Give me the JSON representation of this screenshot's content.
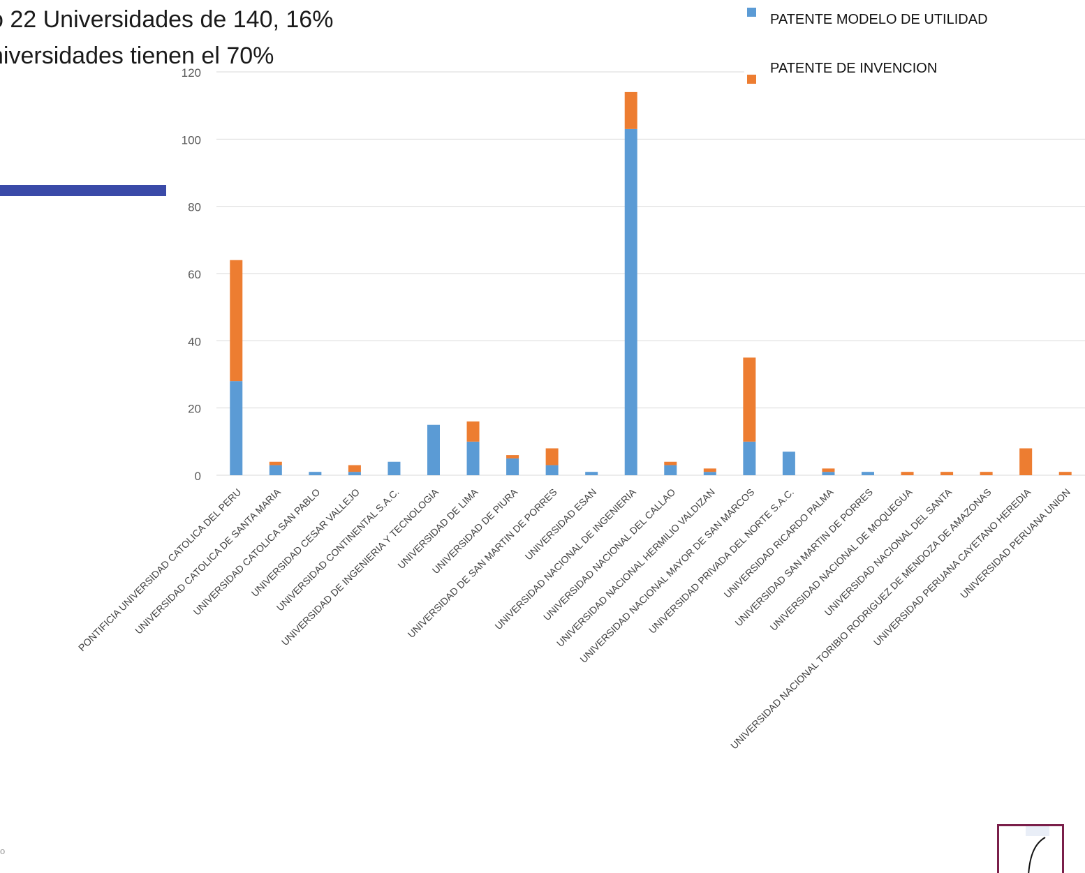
{
  "slide": {
    "title_line_1": "o 22 Universidades de 140, 16%",
    "title_line_2": "niversidades tienen el 70%",
    "corner_text": "o"
  },
  "colors": {
    "modelo_utilidad": "#5b9bd5",
    "invencion": "#ed7d31",
    "accent_bar": "#3a4aa8",
    "logo_border": "#7a1f4a"
  },
  "chart_data": {
    "type": "bar",
    "stacked": true,
    "categories": [
      "PONTIFICIA UNIVERSIDAD CATOLICA DEL PERU",
      "UNIVERSIDAD CATOLICA DE SANTA MARIA",
      "UNIVERSIDAD CATOLICA SAN PABLO",
      "UNIVERSIDAD CESAR VALLEJO",
      "UNIVERSIDAD CONTINENTAL S.A.C.",
      "UNIVERSIDAD DE INGENIERIA Y TECNOLOGIA",
      "UNIVERSIDAD DE LIMA",
      "UNIVERSIDAD DE PIURA",
      "UNIVERSIDAD DE SAN MARTIN DE PORRES",
      "UNIVERSIDAD ESAN",
      "UNIVERSIDAD NACIONAL DE INGENIERIA",
      "UNIVERSIDAD NACIONAL DEL CALLAO",
      "UNIVERSIDAD NACIONAL HERMILIO VALDIZAN",
      "UNIVERSIDAD NACIONAL MAYOR DE SAN MARCOS",
      "UNIVERSIDAD PRIVADA DEL NORTE S.A.C.",
      "UNIVERSIDAD RICARDO PALMA",
      "UNIVERSIDAD SAN MARTIN DE PORRES",
      "UNIVERSIDAD NACIONAL DE MOQUEGUA",
      "UNIVERSIDAD NACIONAL DEL SANTA",
      "UNIVERSIDAD NACIONAL TORIBIO RODRIGUEZ DE MENDOZA DE AMAZONAS",
      "UNIVERSIDAD PERUANA CAYETANO HEREDIA",
      "UNIVERSIDAD PERUANA UNION"
    ],
    "series": [
      {
        "name": "PATENTE MODELO DE UTILIDAD",
        "values": [
          28,
          3,
          1,
          1,
          4,
          15,
          10,
          5,
          3,
          1,
          103,
          3,
          1,
          10,
          7,
          1,
          1,
          0,
          0,
          0,
          0,
          0
        ]
      },
      {
        "name": "PATENTE  DE INVENCION",
        "values": [
          36,
          1,
          0,
          2,
          0,
          0,
          6,
          1,
          5,
          0,
          11,
          1,
          1,
          25,
          0,
          1,
          0,
          1,
          1,
          1,
          8,
          1
        ]
      }
    ],
    "ylim": [
      0,
      120
    ],
    "yticks": [
      0,
      20,
      40,
      60,
      80,
      100,
      120
    ],
    "grid": true,
    "legend_position": "top-right"
  }
}
